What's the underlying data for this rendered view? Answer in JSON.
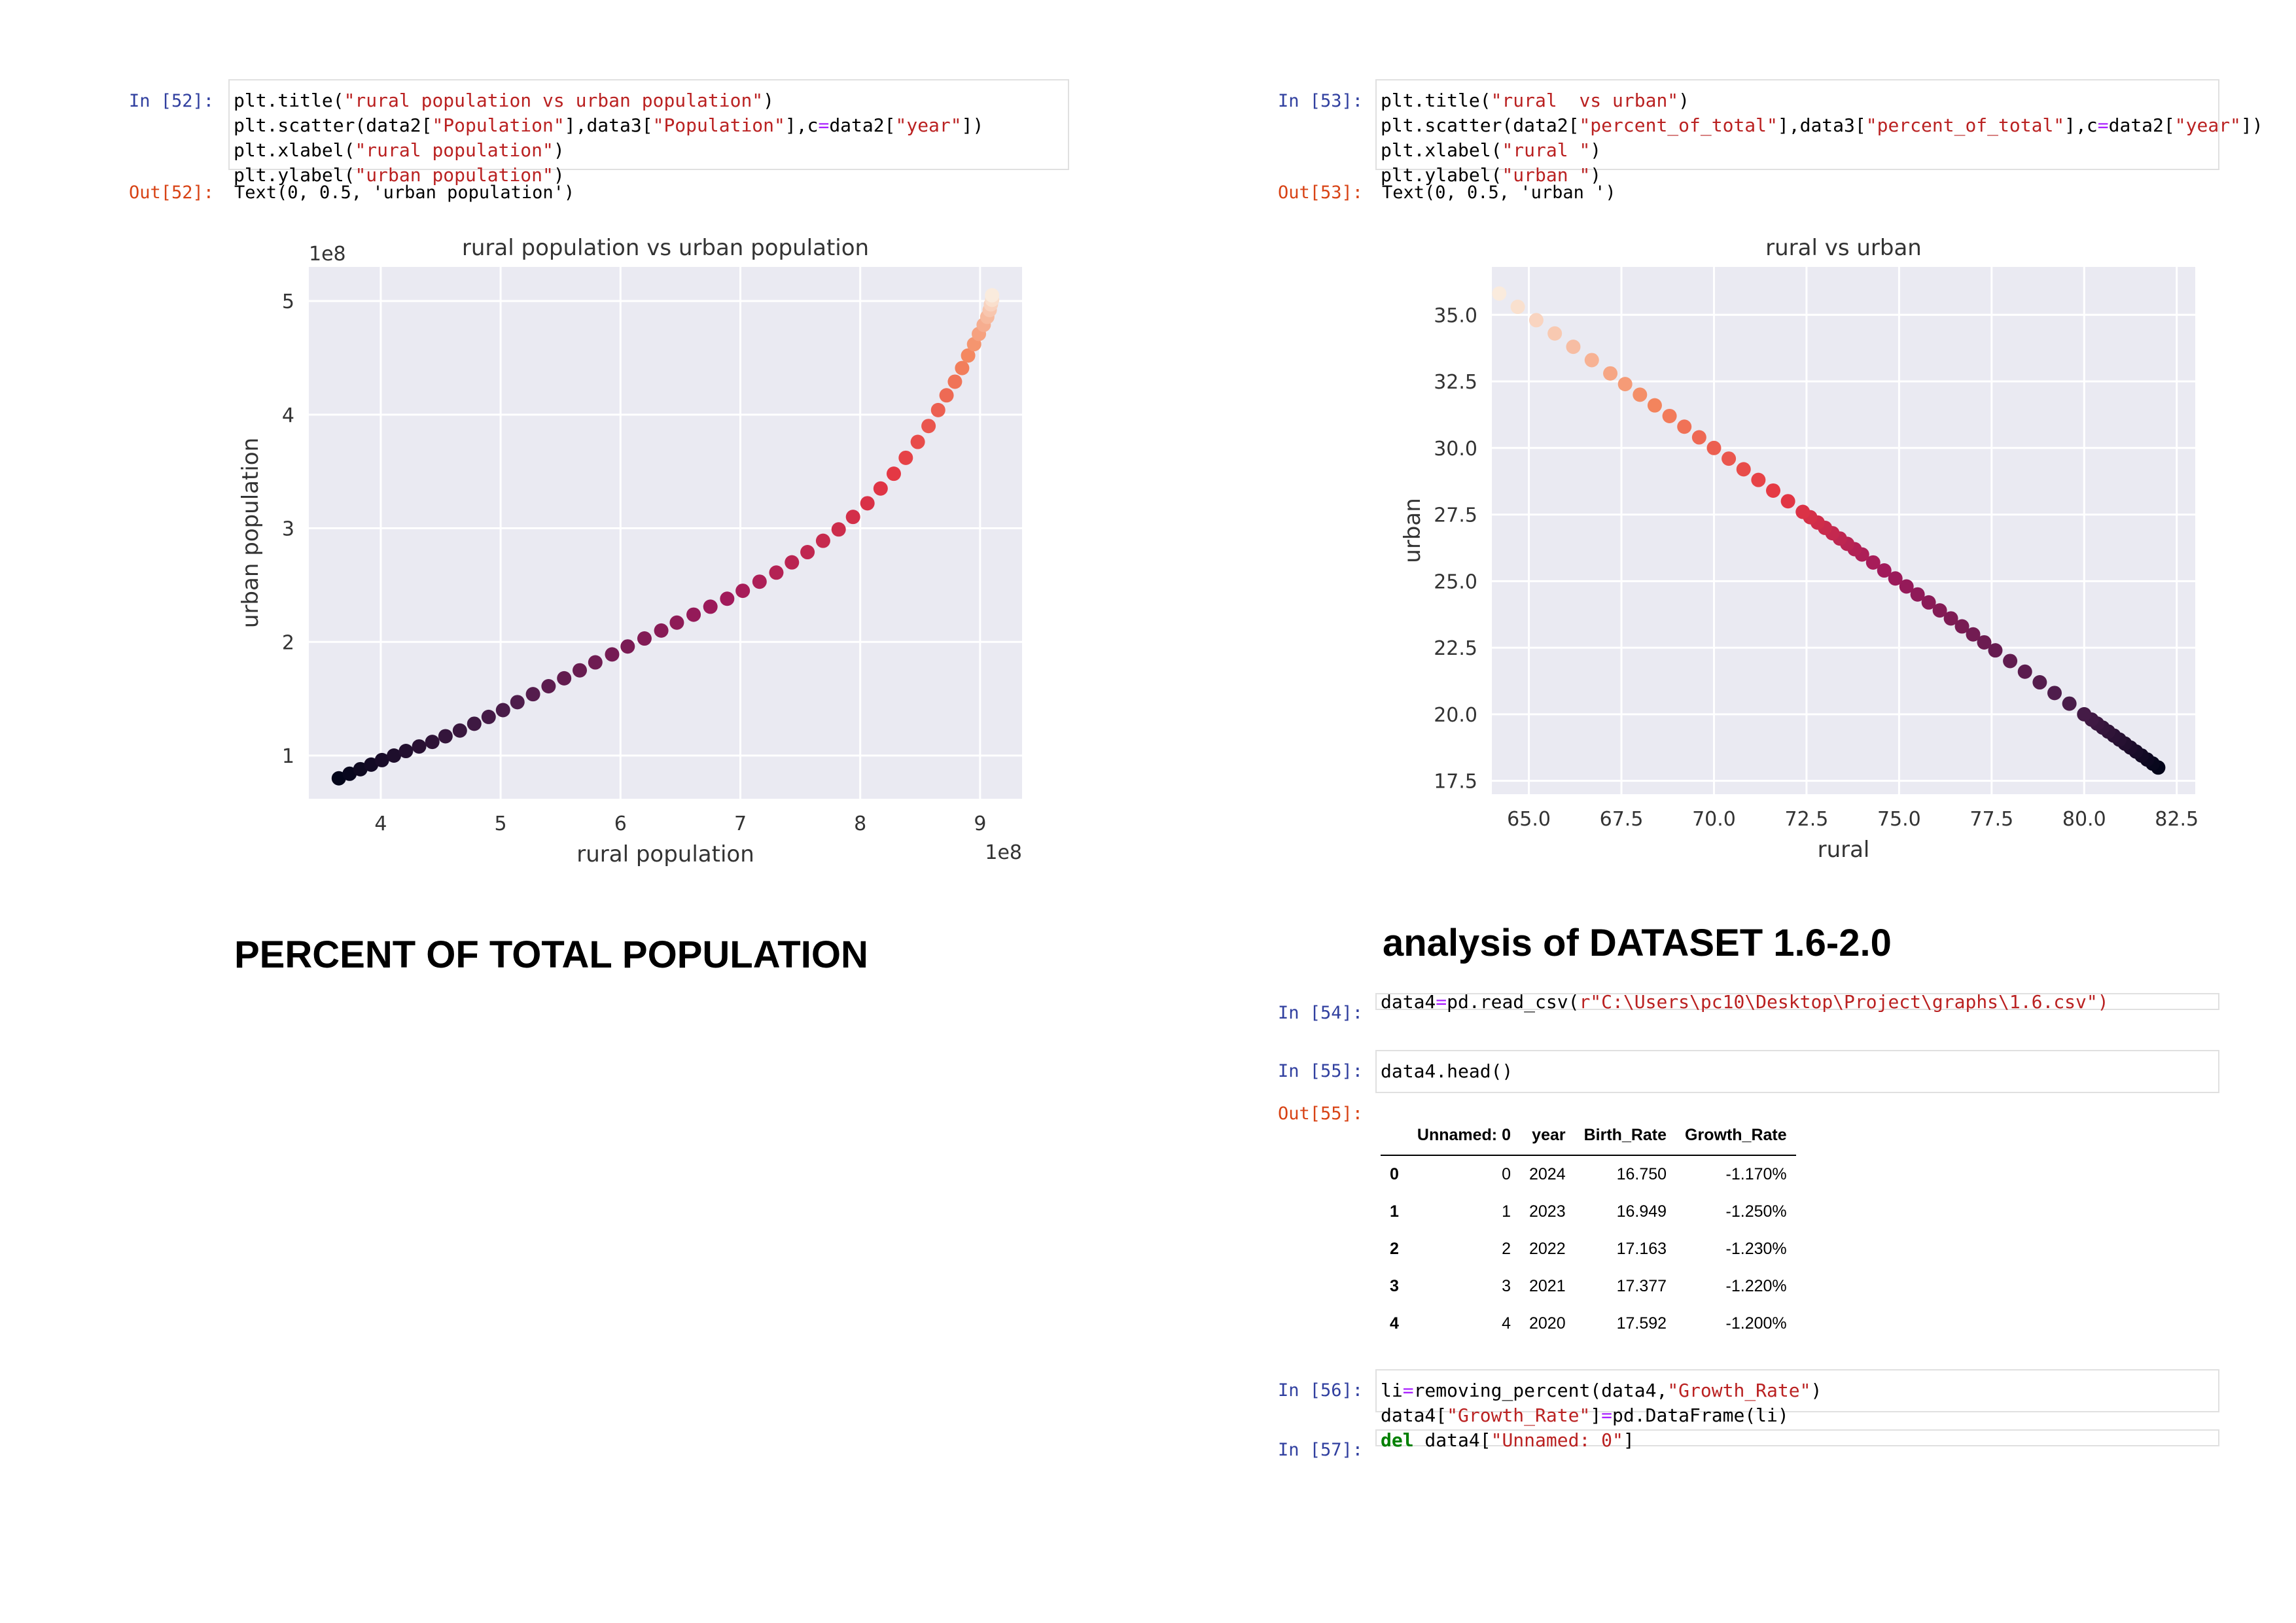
{
  "cells": {
    "c52": {
      "in_prompt": "In [52]:",
      "out_prompt": "Out[52]:",
      "code_lines": [
        [
          {
            "t": "plt.title("
          },
          {
            "t": "\"rural population vs urban population\"",
            "c": "s"
          },
          {
            "t": ")"
          }
        ],
        [
          {
            "t": "plt.scatter(data2["
          },
          {
            "t": "\"Population\"",
            "c": "s"
          },
          {
            "t": "],data3["
          },
          {
            "t": "\"Population\"",
            "c": "s"
          },
          {
            "t": "],c"
          },
          {
            "t": "=",
            "c": "o"
          },
          {
            "t": "data2["
          },
          {
            "t": "\"year\"",
            "c": "s"
          },
          {
            "t": "])"
          }
        ],
        [
          {
            "t": "plt.xlabel("
          },
          {
            "t": "\"rural population\"",
            "c": "s"
          },
          {
            "t": ")"
          }
        ],
        [
          {
            "t": "plt.ylabel("
          },
          {
            "t": "\"urban population\"",
            "c": "s"
          },
          {
            "t": ")"
          }
        ]
      ],
      "output_text": "Text(0, 0.5, 'urban population')"
    },
    "c53": {
      "in_prompt": "In [53]:",
      "out_prompt": "Out[53]:",
      "code_lines": [
        [
          {
            "t": "plt.title("
          },
          {
            "t": "\"rural  vs urban\"",
            "c": "s"
          },
          {
            "t": ")"
          }
        ],
        [
          {
            "t": "plt.scatter(data2["
          },
          {
            "t": "\"percent_of_total\"",
            "c": "s"
          },
          {
            "t": "],data3["
          },
          {
            "t": "\"percent_of_total\"",
            "c": "s"
          },
          {
            "t": "],c"
          },
          {
            "t": "=",
            "c": "o"
          },
          {
            "t": "data2["
          },
          {
            "t": "\"year\"",
            "c": "s"
          },
          {
            "t": "])"
          }
        ],
        [
          {
            "t": "plt.xlabel("
          },
          {
            "t": "\"rural \"",
            "c": "s"
          },
          {
            "t": ")"
          }
        ],
        [
          {
            "t": "plt.ylabel("
          },
          {
            "t": "\"urban \"",
            "c": "s"
          },
          {
            "t": ")"
          }
        ]
      ],
      "output_text": "Text(0, 0.5, 'urban ')"
    },
    "c54": {
      "in_prompt": "In [54]:",
      "code_lines": [
        [
          {
            "t": "data4"
          },
          {
            "t": "=",
            "c": "o"
          },
          {
            "t": "pd.read_csv("
          },
          {
            "t": "r\"C:\\Users\\pc10\\Desktop\\Project\\graphs\\1.6.csv\")",
            "c": "s"
          }
        ]
      ]
    },
    "c55": {
      "in_prompt": "In [55]:",
      "out_prompt": "Out[55]:",
      "code_lines": [
        [
          {
            "t": "data4.head()"
          }
        ]
      ]
    },
    "c56": {
      "in_prompt": "In [56]:",
      "code_lines": [
        [
          {
            "t": "li"
          },
          {
            "t": "=",
            "c": "o"
          },
          {
            "t": "removing_percent(data4,"
          },
          {
            "t": "\"Growth_Rate\"",
            "c": "s"
          },
          {
            "t": ")"
          }
        ],
        [
          {
            "t": "data4["
          },
          {
            "t": "\"Growth_Rate\"",
            "c": "s"
          },
          {
            "t": "]"
          },
          {
            "t": "=",
            "c": "o"
          },
          {
            "t": "pd.DataFrame(li)"
          }
        ]
      ]
    },
    "c57": {
      "in_prompt": "In [57]:",
      "code_lines": [
        [
          {
            "t": "del",
            "c": "k"
          },
          {
            "t": " data4["
          },
          {
            "t": "\"Unnamed: 0\"",
            "c": "s"
          },
          {
            "t": "]"
          }
        ]
      ]
    }
  },
  "headings": {
    "left": "PERCENT OF TOTAL POPULATION",
    "right": "analysis of DATASET 1.6-2.0"
  },
  "table": {
    "columns": [
      "",
      "Unnamed: 0",
      "year",
      "Birth_Rate",
      "Growth_Rate"
    ],
    "rows": [
      [
        "0",
        "0",
        "2024",
        "16.750",
        "-1.170%"
      ],
      [
        "1",
        "1",
        "2023",
        "16.949",
        "-1.250%"
      ],
      [
        "2",
        "2",
        "2022",
        "17.163",
        "-1.230%"
      ],
      [
        "3",
        "3",
        "2021",
        "17.377",
        "-1.220%"
      ],
      [
        "4",
        "4",
        "2020",
        "17.592",
        "-1.200%"
      ]
    ]
  },
  "colors": {
    "plot_bg": "#eaeaf2",
    "grid": "#ffffff",
    "prompt_in": "#303f9f",
    "prompt_out": "#d84315",
    "string": "#ba2121",
    "operator": "#aa22ff",
    "colormap": "rocket"
  },
  "chart_data": [
    {
      "type": "scatter",
      "title": "rural population vs urban population",
      "xlabel": "rural population",
      "ylabel": "urban population",
      "x_offset_text": "1e8",
      "y_offset_text": "1e8",
      "xlim": [
        3.4,
        9.35
      ],
      "ylim": [
        0.62,
        5.3
      ],
      "xticks": [
        4,
        5,
        6,
        7,
        8,
        9
      ],
      "yticks": [
        1,
        2,
        3,
        4,
        5
      ],
      "xtick_labels": [
        "4",
        "5",
        "6",
        "7",
        "8",
        "9"
      ],
      "ytick_labels": [
        "1",
        "2",
        "3",
        "4",
        "5"
      ],
      "grid": true,
      "color_by": "year",
      "x": [
        3.65,
        3.74,
        3.83,
        3.92,
        4.01,
        4.11,
        4.21,
        4.32,
        4.43,
        4.54,
        4.66,
        4.78,
        4.9,
        5.02,
        5.14,
        5.27,
        5.4,
        5.53,
        5.66,
        5.79,
        5.93,
        6.06,
        6.2,
        6.34,
        6.47,
        6.61,
        6.75,
        6.89,
        7.02,
        7.16,
        7.3,
        7.43,
        7.56,
        7.69,
        7.82,
        7.94,
        8.06,
        8.17,
        8.28,
        8.38,
        8.48,
        8.57,
        8.65,
        8.72,
        8.79,
        8.85,
        8.9,
        8.95,
        8.99,
        9.03,
        9.06,
        9.08,
        9.09,
        9.1,
        9.1
      ],
      "y": [
        0.8,
        0.84,
        0.88,
        0.92,
        0.96,
        1.0,
        1.04,
        1.08,
        1.12,
        1.17,
        1.22,
        1.28,
        1.34,
        1.4,
        1.47,
        1.54,
        1.61,
        1.68,
        1.75,
        1.82,
        1.89,
        1.96,
        2.03,
        2.1,
        2.17,
        2.24,
        2.31,
        2.38,
        2.45,
        2.53,
        2.61,
        2.7,
        2.79,
        2.89,
        2.99,
        3.1,
        3.22,
        3.35,
        3.48,
        3.62,
        3.76,
        3.9,
        4.04,
        4.17,
        4.29,
        4.41,
        4.52,
        4.62,
        4.71,
        4.79,
        4.86,
        4.92,
        4.97,
        5.01,
        5.05
      ]
    },
    {
      "type": "scatter",
      "title": "rural  vs urban",
      "xlabel": "rural",
      "ylabel": "urban",
      "xlim": [
        64.0,
        83.0
      ],
      "ylim": [
        17.0,
        36.8
      ],
      "xticks": [
        65.0,
        67.5,
        70.0,
        72.5,
        75.0,
        77.5,
        80.0,
        82.5
      ],
      "yticks": [
        17.5,
        20.0,
        22.5,
        25.0,
        27.5,
        30.0,
        32.5,
        35.0
      ],
      "xtick_labels": [
        "65.0",
        "67.5",
        "70.0",
        "72.5",
        "75.0",
        "77.5",
        "80.0",
        "82.5"
      ],
      "ytick_labels": [
        "17.5",
        "20.0",
        "22.5",
        "25.0",
        "27.5",
        "30.0",
        "32.5",
        "35.0"
      ],
      "grid": true,
      "color_by": "year",
      "x": [
        82.0,
        81.85,
        81.7,
        81.55,
        81.4,
        81.25,
        81.1,
        80.95,
        80.8,
        80.65,
        80.5,
        80.35,
        80.2,
        80.0,
        79.6,
        79.2,
        78.8,
        78.4,
        78.0,
        77.6,
        77.3,
        77.0,
        76.7,
        76.4,
        76.1,
        75.8,
        75.5,
        75.2,
        74.9,
        74.6,
        74.3,
        74.0,
        73.8,
        73.6,
        73.4,
        73.2,
        73.0,
        72.8,
        72.6,
        72.4,
        72.0,
        71.6,
        71.2,
        70.8,
        70.4,
        70.0,
        69.6,
        69.2,
        68.8,
        68.4,
        68.0,
        67.6,
        67.2,
        66.7,
        66.2,
        65.7,
        65.2,
        64.7,
        64.2
      ],
      "y": [
        18.0,
        18.15,
        18.3,
        18.45,
        18.6,
        18.75,
        18.9,
        19.05,
        19.2,
        19.35,
        19.5,
        19.65,
        19.8,
        20.0,
        20.4,
        20.8,
        21.2,
        21.6,
        22.0,
        22.4,
        22.7,
        23.0,
        23.3,
        23.6,
        23.9,
        24.2,
        24.5,
        24.8,
        25.1,
        25.4,
        25.7,
        26.0,
        26.2,
        26.4,
        26.6,
        26.8,
        27.0,
        27.2,
        27.4,
        27.6,
        28.0,
        28.4,
        28.8,
        29.2,
        29.6,
        30.0,
        30.4,
        30.8,
        31.2,
        31.6,
        32.0,
        32.4,
        32.8,
        33.3,
        33.8,
        34.3,
        34.8,
        35.3,
        35.8
      ]
    }
  ]
}
